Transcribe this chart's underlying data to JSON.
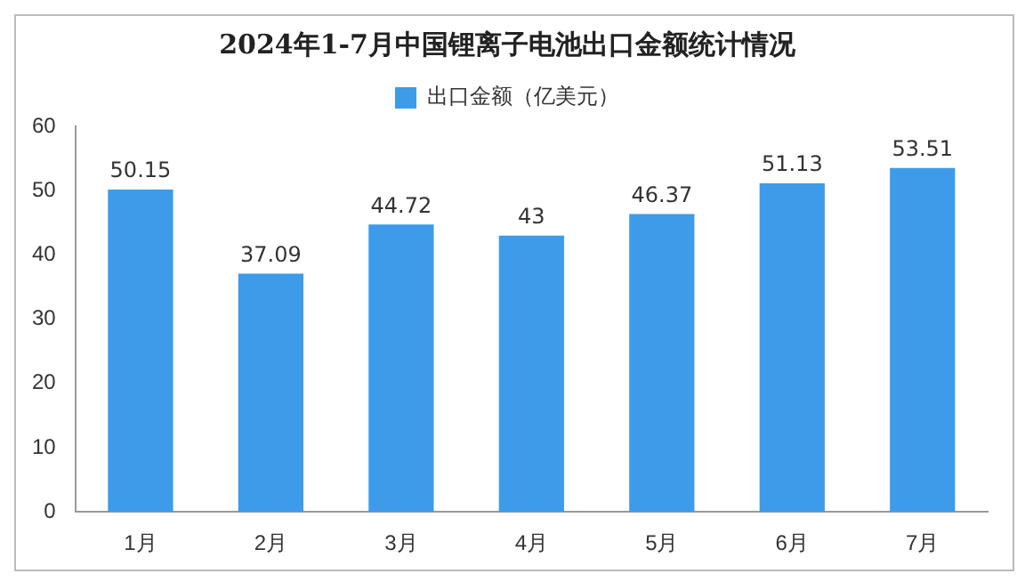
{
  "chart_data": {
    "type": "bar",
    "title": "2024年1-7月中国锂离子电池出口金额统计情况",
    "categories": [
      "1月",
      "2月",
      "3月",
      "4月",
      "5月",
      "6月",
      "7月"
    ],
    "series": [
      {
        "name": "出口金额（亿美元）",
        "color": "#3d9be9",
        "values": [
          50.15,
          37.09,
          44.72,
          43,
          46.37,
          51.13,
          53.51
        ]
      }
    ],
    "ylim": [
      0,
      60
    ],
    "yticks": [
      0,
      10,
      20,
      30,
      40,
      50,
      60
    ],
    "grid": false,
    "legend": "top",
    "data_labels": true
  }
}
